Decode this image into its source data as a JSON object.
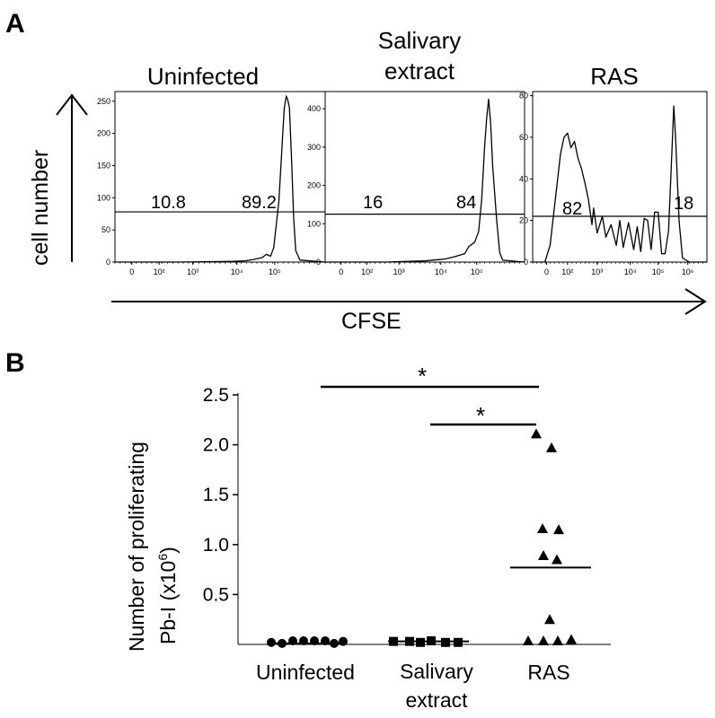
{
  "panel_a": {
    "label": "A",
    "y_axis_label": "cell number",
    "x_axis_label": "CFSE",
    "histograms": [
      {
        "title_lines": [
          "Uninfected"
        ],
        "y_ticks": [
          "0",
          "50",
          "100",
          "150",
          "200",
          "250"
        ],
        "y_max": 265,
        "x_ticks": [
          "0",
          "10²",
          "10³",
          "10⁴",
          "10⁵"
        ],
        "gate_left": "10.8",
        "gate_right": "89.2",
        "gate_level": 78,
        "profile": [
          [
            0.0,
            0
          ],
          [
            0.3,
            0
          ],
          [
            0.55,
            1
          ],
          [
            0.62,
            2
          ],
          [
            0.66,
            4
          ],
          [
            0.7,
            7
          ],
          [
            0.72,
            12
          ],
          [
            0.74,
            9
          ],
          [
            0.755,
            22
          ],
          [
            0.78,
            95
          ],
          [
            0.795,
            180
          ],
          [
            0.805,
            238
          ],
          [
            0.815,
            258
          ],
          [
            0.822,
            252
          ],
          [
            0.83,
            240
          ],
          [
            0.84,
            160
          ],
          [
            0.85,
            70
          ],
          [
            0.86,
            18
          ],
          [
            0.88,
            3
          ],
          [
            1.0,
            0
          ]
        ]
      },
      {
        "title_lines": [
          "Salivary",
          "extract"
        ],
        "y_ticks": [
          "0",
          "100",
          "200",
          "300",
          "400"
        ],
        "y_max": 445,
        "x_ticks": [
          "0",
          "10²",
          "10³",
          "10⁴",
          "10⁵"
        ],
        "gate_left": "16",
        "gate_right": "84",
        "gate_level": 125,
        "profile": [
          [
            0.0,
            0
          ],
          [
            0.3,
            0
          ],
          [
            0.5,
            3
          ],
          [
            0.6,
            8
          ],
          [
            0.65,
            14
          ],
          [
            0.7,
            22
          ],
          [
            0.72,
            40
          ],
          [
            0.75,
            52
          ],
          [
            0.77,
            80
          ],
          [
            0.785,
            165
          ],
          [
            0.8,
            305
          ],
          [
            0.81,
            375
          ],
          [
            0.82,
            425
          ],
          [
            0.83,
            360
          ],
          [
            0.84,
            250
          ],
          [
            0.86,
            110
          ],
          [
            0.875,
            25
          ],
          [
            0.89,
            5
          ],
          [
            1.0,
            0
          ]
        ]
      },
      {
        "title_lines": [
          "RAS"
        ],
        "y_ticks": [
          "0",
          "20",
          "40",
          "60",
          "80"
        ],
        "y_max": 82,
        "x_ticks": [
          "0",
          "10²",
          "10³",
          "10⁴",
          "10⁵",
          "10⁶"
        ],
        "gate_left": "82",
        "gate_right": "18",
        "gate_level": 22,
        "profile": [
          [
            0.0,
            0
          ],
          [
            0.07,
            0
          ],
          [
            0.1,
            8
          ],
          [
            0.13,
            30
          ],
          [
            0.16,
            52
          ],
          [
            0.18,
            60
          ],
          [
            0.2,
            62
          ],
          [
            0.22,
            55
          ],
          [
            0.24,
            58
          ],
          [
            0.26,
            50
          ],
          [
            0.28,
            45
          ],
          [
            0.3,
            38
          ],
          [
            0.32,
            30
          ],
          [
            0.34,
            18
          ],
          [
            0.35,
            26
          ],
          [
            0.37,
            14
          ],
          [
            0.4,
            22
          ],
          [
            0.42,
            12
          ],
          [
            0.45,
            18
          ],
          [
            0.48,
            8
          ],
          [
            0.5,
            20
          ],
          [
            0.52,
            7
          ],
          [
            0.55,
            19
          ],
          [
            0.58,
            6
          ],
          [
            0.6,
            17
          ],
          [
            0.62,
            5
          ],
          [
            0.64,
            21
          ],
          [
            0.66,
            20
          ],
          [
            0.68,
            6
          ],
          [
            0.7,
            24
          ],
          [
            0.72,
            24
          ],
          [
            0.74,
            4
          ],
          [
            0.76,
            4
          ],
          [
            0.78,
            15
          ],
          [
            0.8,
            55
          ],
          [
            0.81,
            75
          ],
          [
            0.82,
            60
          ],
          [
            0.84,
            20
          ],
          [
            0.86,
            2
          ],
          [
            0.9,
            0
          ],
          [
            1.0,
            0
          ]
        ]
      }
    ]
  },
  "panel_b": {
    "label": "B",
    "y_label_line1": "Number of proliferating",
    "y_label_line2_prefix": "Pb-I (x10",
    "y_label_exponent": "6",
    "y_label_suffix": ")",
    "significance_mark": "*",
    "comparisons": [
      [
        "Uninfected",
        "RAS"
      ],
      [
        "Salivary extract",
        "RAS"
      ]
    ]
  },
  "chart_data": {
    "type": "scatter",
    "categories": [
      "Uninfected",
      "Salivary extract",
      "RAS"
    ],
    "y_ticks": [
      "0.5",
      "1.0",
      "1.5",
      "2.0",
      "2.5"
    ],
    "ylim": [
      0,
      2.5
    ],
    "series": [
      {
        "category": "Uninfected",
        "marker": "circle",
        "values": [
          0.02,
          0.01,
          0.0,
          0.0,
          0.0,
          0.0,
          0.01,
          0.03
        ],
        "mean": 0.01
      },
      {
        "category": "Salivary extract",
        "marker": "square",
        "values": [
          0.03,
          0.03,
          0.02,
          0.0,
          0.02,
          0.02
        ],
        "mean": 0.03
      },
      {
        "category": "RAS",
        "marker": "triangle",
        "values": [
          2.11,
          1.97,
          1.16,
          1.15,
          0.89,
          0.85,
          0.25,
          0.0,
          0.0,
          0.0,
          0.05
        ],
        "mean": 0.77
      }
    ]
  }
}
